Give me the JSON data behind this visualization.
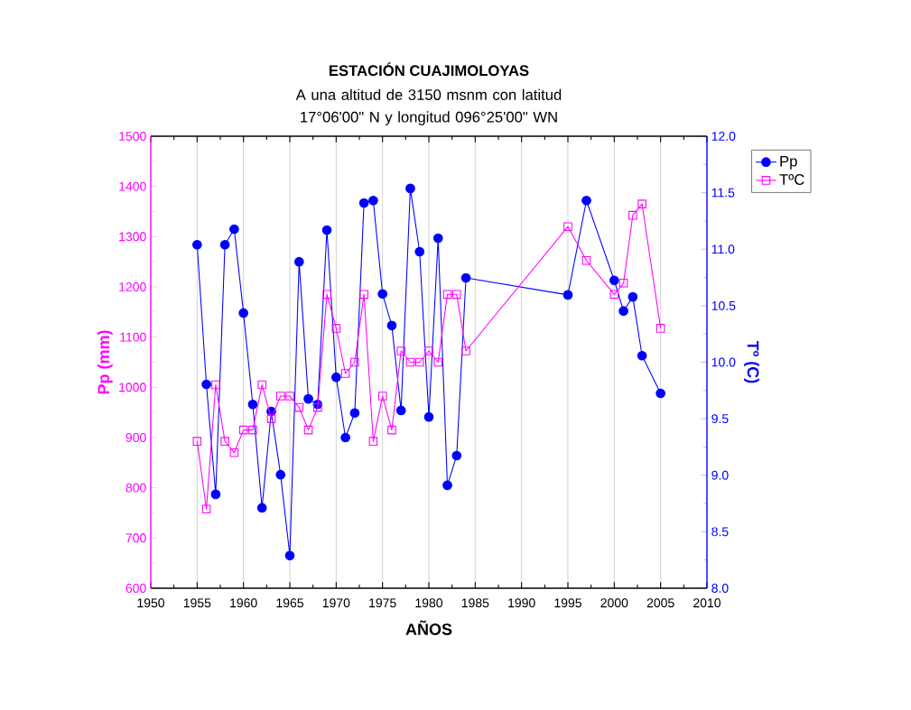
{
  "chart_data": {
    "type": "line",
    "title": "ESTACIÓN CUAJIMOLOYAS",
    "subtitle": "A una altitud de 3150 msnm con latitud 17°06'00\" N y longitud 096°25'00\" WN",
    "xlabel": "AÑOS",
    "ylabel": "Pp (mm)",
    "y2label": "Tº (C)",
    "x": [
      1955,
      1956,
      1957,
      1958,
      1959,
      1960,
      1961,
      1962,
      1963,
      1964,
      1965,
      1966,
      1967,
      1968,
      1969,
      1970,
      1971,
      1972,
      1973,
      1974,
      1975,
      1976,
      1977,
      1978,
      1979,
      1980,
      1981,
      1982,
      1983,
      1984,
      1995,
      1997,
      2000,
      2001,
      2002,
      2003,
      2005
    ],
    "series": [
      {
        "name": "Pp",
        "color": "#0000ff",
        "marker": "circle",
        "values": [
          1284,
          1006,
          787,
          1284,
          1315,
          1148,
          966,
          760,
          952,
          826,
          665,
          1250,
          977,
          966,
          1313,
          1020,
          900,
          949,
          1367,
          1372,
          1186,
          1123,
          954,
          1396,
          1270,
          941,
          1297,
          805,
          864,
          1218,
          1184,
          1372,
          1213,
          1152,
          1180,
          1063,
          988
        ]
      },
      {
        "name": "TºC",
        "color": "#ff00ff",
        "marker": "square",
        "axis": "y2",
        "values": [
          9.3,
          8.7,
          9.8,
          9.3,
          9.2,
          9.4,
          9.4,
          9.8,
          9.5,
          9.7,
          9.7,
          9.6,
          9.4,
          9.6,
          10.6,
          10.3,
          9.9,
          10.0,
          10.6,
          9.3,
          9.7,
          9.4,
          10.1,
          10.0,
          10.0,
          10.1,
          10.0,
          10.6,
          10.6,
          10.1,
          11.2,
          10.9,
          10.6,
          10.7,
          11.3,
          11.4,
          10.3
        ]
      }
    ],
    "xlim": [
      1950,
      2010
    ],
    "xticks": [
      1950,
      1955,
      1960,
      1965,
      1970,
      1975,
      1980,
      1985,
      1990,
      1995,
      2000,
      2005,
      2010
    ],
    "ylim": [
      600,
      1500
    ],
    "yticks": [
      600,
      700,
      800,
      900,
      1000,
      1100,
      1200,
      1300,
      1400,
      1500
    ],
    "y2lim": [
      8,
      12
    ],
    "y2ticks": [
      {
        "value": 8,
        "label": "8.0"
      },
      {
        "value": 8.5,
        "label": "8.5"
      },
      {
        "value": 9,
        "label": "9.0"
      },
      {
        "value": 9.5,
        "label": "9.5"
      },
      {
        "value": 10,
        "label": "10.0"
      },
      {
        "value": 10.5,
        "label": "10.5"
      },
      {
        "value": 11,
        "label": "11.0"
      },
      {
        "value": 11.5,
        "label": "11.5"
      },
      {
        "value": 12,
        "label": "12.0"
      }
    ],
    "grid": "x",
    "legend": "right",
    "line_style": "solid"
  }
}
